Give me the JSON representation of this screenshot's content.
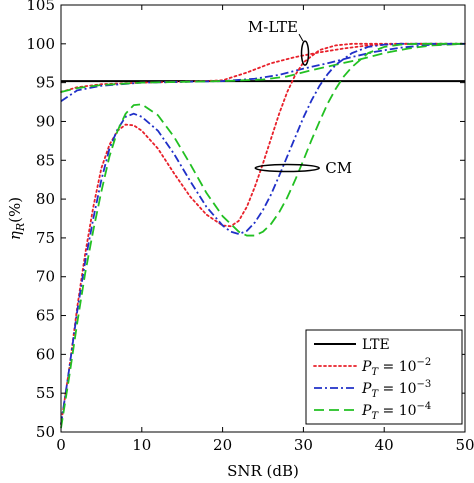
{
  "chart_data": {
    "type": "line",
    "xlabel": "SNR (dB)",
    "ylabel": "η_R(%)",
    "xlim": [
      0,
      50
    ],
    "ylim": [
      50,
      105
    ],
    "xticks": [
      0,
      10,
      20,
      30,
      40,
      50
    ],
    "yticks": [
      50,
      55,
      60,
      65,
      70,
      75,
      80,
      85,
      90,
      95,
      100,
      105
    ],
    "grid": false,
    "legend_position": "bottom-right",
    "annotations": [
      {
        "text": "M-LTE",
        "x": 30.2,
        "y": 98.8
      },
      {
        "text": "CM",
        "x": 28,
        "y": 84
      }
    ],
    "series": [
      {
        "name": "LTE",
        "legend_base": "LTE",
        "legend_exp": "",
        "color": "#000000",
        "dash": "solid",
        "width": 2,
        "x": [
          0,
          50
        ],
        "y": [
          95.2,
          95.2
        ]
      },
      {
        "name": "P_T = 10^-2 (M-LTE)",
        "legend_base": "P_T = 10",
        "legend_exp": "−2",
        "color": "#e8202a",
        "dash": "dotted",
        "width": 1.8,
        "x": [
          0,
          2,
          5,
          10,
          15,
          20,
          23,
          26,
          29,
          32,
          35,
          38,
          42,
          46,
          50
        ],
        "y": [
          93.8,
          94.4,
          94.8,
          95.0,
          95.1,
          95.3,
          96.3,
          97.5,
          98.3,
          98.9,
          99.4,
          99.8,
          100.0,
          100.0,
          100.0
        ]
      },
      {
        "name": "P_T = 10^-3 (M-LTE)",
        "legend_base": "P_T = 10",
        "legend_exp": "−3",
        "color": "#2030c8",
        "dash": "dashdot",
        "width": 1.8,
        "x": [
          0,
          2,
          5,
          10,
          15,
          20,
          24,
          27,
          30,
          33,
          36,
          39,
          42,
          46,
          50
        ],
        "y": [
          92.6,
          94.0,
          94.6,
          95.0,
          95.1,
          95.2,
          95.5,
          96.0,
          96.8,
          97.5,
          98.3,
          99.0,
          99.5,
          99.9,
          100.0
        ]
      },
      {
        "name": "P_T = 10^-4 (M-LTE)",
        "legend_base": "P_T = 10",
        "legend_exp": "−4",
        "color": "#22c022",
        "dash": "dashed",
        "width": 1.8,
        "x": [
          0,
          2,
          5,
          10,
          15,
          20,
          25,
          28,
          31,
          34,
          37,
          40,
          43,
          46,
          50
        ],
        "y": [
          93.8,
          94.3,
          94.7,
          95.0,
          95.1,
          95.2,
          95.4,
          95.8,
          96.6,
          97.3,
          98.0,
          98.8,
          99.4,
          99.8,
          100.0
        ]
      },
      {
        "name": "P_T = 10^-2 (CM)",
        "legend_base": "",
        "legend_exp": "",
        "color": "#e8202a",
        "dash": "dotted",
        "width": 1.8,
        "x": [
          0,
          1,
          2,
          3,
          4,
          5,
          6,
          7,
          8,
          9,
          10,
          12,
          14,
          16,
          18,
          20,
          21,
          22,
          23,
          24,
          25,
          26,
          27,
          28,
          29,
          30,
          32,
          34,
          36,
          38,
          40,
          42,
          44,
          46,
          48,
          50
        ],
        "y": [
          51,
          58,
          66,
          73,
          79,
          84,
          87,
          88.8,
          89.6,
          89.5,
          88.8,
          86.5,
          83.3,
          80.3,
          78,
          76.6,
          76.5,
          77.2,
          79,
          81.6,
          84.6,
          87.8,
          91,
          93.8,
          96,
          97.6,
          99.2,
          99.8,
          100,
          100,
          100,
          100,
          100,
          100,
          100,
          100
        ]
      },
      {
        "name": "P_T = 10^-3 (CM)",
        "legend_base": "",
        "legend_exp": "",
        "color": "#2030c8",
        "dash": "dashdot",
        "width": 1.8,
        "x": [
          0,
          1,
          2,
          3,
          4,
          5,
          6,
          7,
          8,
          9,
          10,
          12,
          14,
          16,
          18,
          20,
          21,
          22,
          23,
          24,
          25,
          26,
          27,
          28,
          29,
          30,
          31,
          32,
          33,
          34,
          36,
          38,
          40,
          42,
          44,
          46,
          48,
          50
        ],
        "y": [
          51,
          58,
          65.5,
          72,
          77.5,
          82.5,
          86.5,
          89,
          90.6,
          91,
          90.6,
          88.8,
          85.8,
          82.3,
          79,
          76.6,
          75.8,
          75.5,
          75.9,
          77,
          78.6,
          80.6,
          83,
          85.5,
          88,
          90.5,
          92.7,
          94.6,
          96.1,
          97.3,
          98.8,
          99.6,
          99.9,
          100,
          100,
          100,
          100,
          100
        ]
      },
      {
        "name": "P_T = 10^-4 (CM)",
        "legend_base": "",
        "legend_exp": "",
        "color": "#22c022",
        "dash": "dashed",
        "width": 1.8,
        "x": [
          0,
          1,
          2,
          3,
          4,
          5,
          6,
          7,
          8,
          9,
          10,
          12,
          14,
          16,
          18,
          20,
          22,
          23,
          24,
          25,
          26,
          27,
          28,
          29,
          30,
          31,
          32,
          33,
          34,
          35,
          36,
          38,
          40,
          42,
          44,
          46,
          48,
          50
        ],
        "y": [
          50.5,
          57,
          64,
          70.5,
          76,
          81,
          85.5,
          88.8,
          91,
          92.1,
          92.2,
          90.8,
          88,
          84.5,
          80.8,
          77.8,
          75.8,
          75.3,
          75.3,
          75.8,
          76.8,
          78.3,
          80.2,
          82.5,
          85,
          87.6,
          90,
          92.3,
          94.2,
          95.8,
          97,
          98.8,
          99.6,
          99.9,
          100,
          100,
          100,
          100
        ]
      }
    ]
  }
}
